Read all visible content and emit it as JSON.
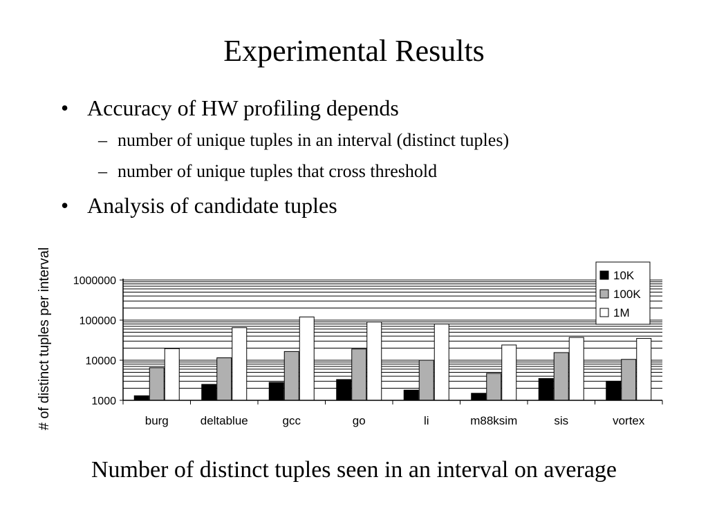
{
  "slide": {
    "title": "Experimental Results",
    "bullets": [
      {
        "marker": "•",
        "text": "Accuracy of HW profiling depends",
        "sub": [
          {
            "marker": "–",
            "text": "number of unique tuples in an interval (distinct tuples)"
          },
          {
            "marker": "–",
            "text": "number of unique tuples that cross threshold"
          }
        ]
      },
      {
        "marker": "•",
        "text": "Analysis of candidate tuples",
        "sub": []
      }
    ],
    "caption": "Number of distinct tuples seen in an interval on average"
  },
  "chart_data": {
    "type": "bar",
    "title": "",
    "xlabel": "",
    "ylabel": "# of distinct tuples per interval",
    "y_scale": "log",
    "ylim": [
      1000,
      1000000
    ],
    "y_ticks": [
      1000,
      10000,
      100000,
      1000000
    ],
    "y_tick_labels": [
      "1000",
      "10000",
      "100000",
      "1000000"
    ],
    "grid": true,
    "legend_position": "top-right",
    "categories": [
      "burg",
      "deltablue",
      "gcc",
      "go",
      "li",
      "m88ksim",
      "sis",
      "vortex"
    ],
    "series": [
      {
        "name": "10K",
        "color": "#000000",
        "values": [
          1300,
          2500,
          2800,
          3300,
          1800,
          1500,
          3500,
          3000
        ]
      },
      {
        "name": "100K",
        "color": "#b0b0b0",
        "values": [
          6500,
          11500,
          16500,
          19000,
          10000,
          4700,
          15500,
          10500
        ]
      },
      {
        "name": "1M",
        "color": "#ffffff",
        "values": [
          19500,
          65000,
          120000,
          90000,
          80000,
          24000,
          37000,
          35000
        ]
      }
    ]
  }
}
